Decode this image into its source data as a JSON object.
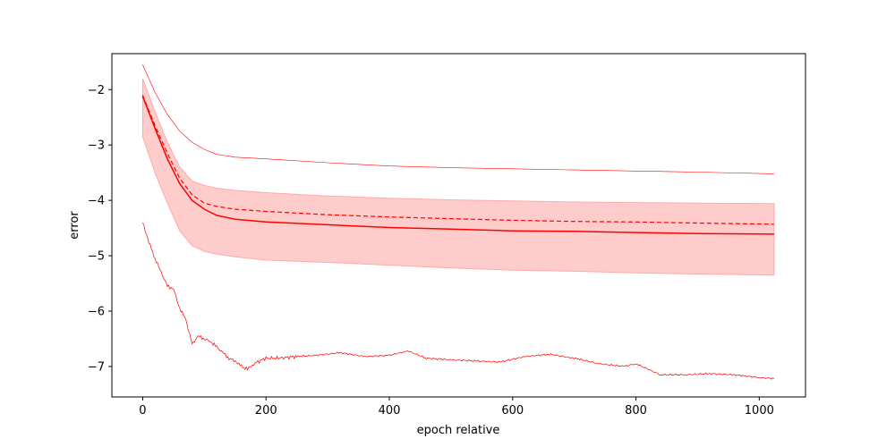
{
  "chart_data": {
    "type": "line",
    "title": "",
    "xlabel": "epoch relative",
    "ylabel": "error",
    "xlim": [
      -50,
      1075
    ],
    "ylim": [
      -7.55,
      -1.35
    ],
    "xticks": [
      0,
      200,
      400,
      600,
      800,
      1000
    ],
    "yticks": [
      -2,
      -3,
      -4,
      -5,
      -6,
      -7
    ],
    "xtick_labels": [
      "0",
      "200",
      "400",
      "600",
      "800",
      "1000"
    ],
    "ytick_labels": [
      "−2",
      "−3",
      "−4",
      "−5",
      "−6",
      "−7"
    ],
    "grid": false,
    "colors": {
      "line": "#ff0000",
      "band_fill": "#ffcccc",
      "band_edge": "#ffaaaa",
      "axes": "#000000"
    },
    "series": [
      {
        "style": "solid-thin-upper",
        "x": [
          0,
          20,
          40,
          60,
          80,
          100,
          120,
          150,
          200,
          300,
          400,
          500,
          600,
          700,
          800,
          900,
          1024
        ],
        "values": [
          -1.55,
          -2.05,
          -2.45,
          -2.75,
          -2.95,
          -3.08,
          -3.17,
          -3.22,
          -3.25,
          -3.32,
          -3.38,
          -3.41,
          -3.43,
          -3.45,
          -3.47,
          -3.49,
          -3.52
        ]
      },
      {
        "style": "dashed-mean",
        "x": [
          0,
          20,
          40,
          60,
          80,
          100,
          120,
          150,
          200,
          300,
          400,
          500,
          600,
          700,
          800,
          900,
          1024
        ],
        "values": [
          -2.1,
          -2.65,
          -3.15,
          -3.6,
          -3.9,
          -4.05,
          -4.11,
          -4.16,
          -4.2,
          -4.26,
          -4.3,
          -4.33,
          -4.36,
          -4.38,
          -4.39,
          -4.41,
          -4.43
        ]
      },
      {
        "style": "solid-median",
        "x": [
          0,
          20,
          40,
          60,
          80,
          100,
          120,
          150,
          200,
          300,
          400,
          500,
          600,
          700,
          800,
          900,
          1024
        ],
        "values": [
          -2.12,
          -2.7,
          -3.25,
          -3.7,
          -4.0,
          -4.16,
          -4.27,
          -4.34,
          -4.39,
          -4.44,
          -4.49,
          -4.52,
          -4.55,
          -4.56,
          -4.58,
          -4.6,
          -4.61
        ]
      },
      {
        "style": "band-upper",
        "x": [
          0,
          20,
          40,
          60,
          80,
          100,
          120,
          150,
          200,
          300,
          400,
          500,
          600,
          700,
          800,
          900,
          1024
        ],
        "values": [
          -1.8,
          -2.4,
          -2.95,
          -3.4,
          -3.65,
          -3.73,
          -3.78,
          -3.82,
          -3.86,
          -3.92,
          -3.96,
          -3.99,
          -4.01,
          -4.03,
          -4.04,
          -4.05,
          -4.06
        ]
      },
      {
        "style": "band-lower",
        "x": [
          0,
          20,
          40,
          60,
          80,
          100,
          120,
          150,
          200,
          300,
          400,
          500,
          600,
          700,
          800,
          900,
          1024
        ],
        "values": [
          -2.85,
          -3.5,
          -4.05,
          -4.55,
          -4.82,
          -4.92,
          -4.97,
          -5.02,
          -5.08,
          -5.12,
          -5.17,
          -5.22,
          -5.26,
          -5.28,
          -5.31,
          -5.33,
          -5.35
        ]
      },
      {
        "style": "noisy-lower",
        "x": [
          0,
          10,
          20,
          30,
          40,
          50,
          60,
          70,
          80,
          90,
          100,
          110,
          120,
          130,
          140,
          150,
          160,
          170,
          180,
          200,
          220,
          250,
          280,
          320,
          360,
          400,
          430,
          460,
          500,
          540,
          580,
          620,
          660,
          700,
          740,
          780,
          800,
          840,
          880,
          920,
          960,
          1000,
          1024
        ],
        "values": [
          -4.4,
          -4.75,
          -5.05,
          -5.3,
          -5.55,
          -5.6,
          -5.95,
          -6.15,
          -6.6,
          -6.45,
          -6.5,
          -6.55,
          -6.65,
          -6.75,
          -6.85,
          -6.9,
          -7.0,
          -7.05,
          -6.95,
          -6.85,
          -6.85,
          -6.82,
          -6.8,
          -6.75,
          -6.82,
          -6.8,
          -6.72,
          -6.85,
          -6.88,
          -6.9,
          -6.92,
          -6.82,
          -6.78,
          -6.85,
          -6.95,
          -7.0,
          -6.95,
          -7.15,
          -7.15,
          -7.13,
          -7.15,
          -7.2,
          -7.22
        ]
      }
    ]
  }
}
